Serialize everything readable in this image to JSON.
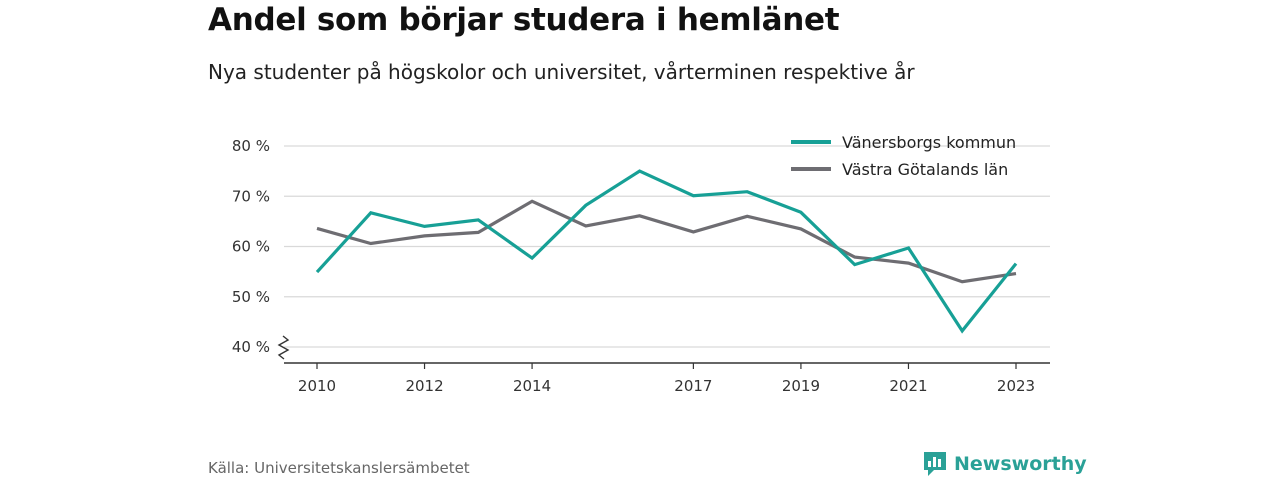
{
  "header": {
    "title": "Andel som börjar studera i hemlänet",
    "subtitle": "Nya studenter på högskolor och universitet, vårterminen respektive år"
  },
  "footer": {
    "source": "Källa: Universitetskanslersämbetet",
    "brand": "Newsworthy",
    "brand_icon": "newsworthy-logo-icon"
  },
  "colors": {
    "series1": "#17a096",
    "series2": "#6e6d72",
    "grid": "#d9d9d9",
    "axis": "#333333",
    "brand": "#2aa197"
  },
  "chart_data": {
    "type": "line",
    "title": "Andel som börjar studera i hemlänet",
    "subtitle": "Nya studenter på högskolor och universitet, vårterminen respektive år",
    "x": [
      2010,
      2011,
      2012,
      2013,
      2014,
      2015,
      2016,
      2017,
      2018,
      2019,
      2020,
      2021,
      2022,
      2023
    ],
    "x_ticks": [
      2010,
      2012,
      2014,
      2017,
      2019,
      2021,
      2023
    ],
    "y_ticks": [
      40,
      50,
      60,
      70,
      80
    ],
    "y_tick_labels": [
      "40 %",
      "50 %",
      "60 %",
      "70 %",
      "80 %"
    ],
    "ylim": [
      37,
      82
    ],
    "y_axis_break": true,
    "grid": true,
    "legend_position": "top-right",
    "series": [
      {
        "name": "Vänersborgs kommun",
        "values": [
          54.9,
          66.7,
          64.0,
          65.3,
          57.7,
          68.2,
          75.0,
          70.1,
          70.9,
          66.8,
          56.4,
          59.7,
          43.2,
          56.6
        ]
      },
      {
        "name": "Västra Götalands län",
        "values": [
          63.6,
          60.6,
          62.1,
          62.8,
          69.0,
          64.1,
          66.1,
          62.9,
          66.0,
          63.5,
          57.9,
          56.7,
          53.0,
          54.6
        ]
      }
    ]
  }
}
